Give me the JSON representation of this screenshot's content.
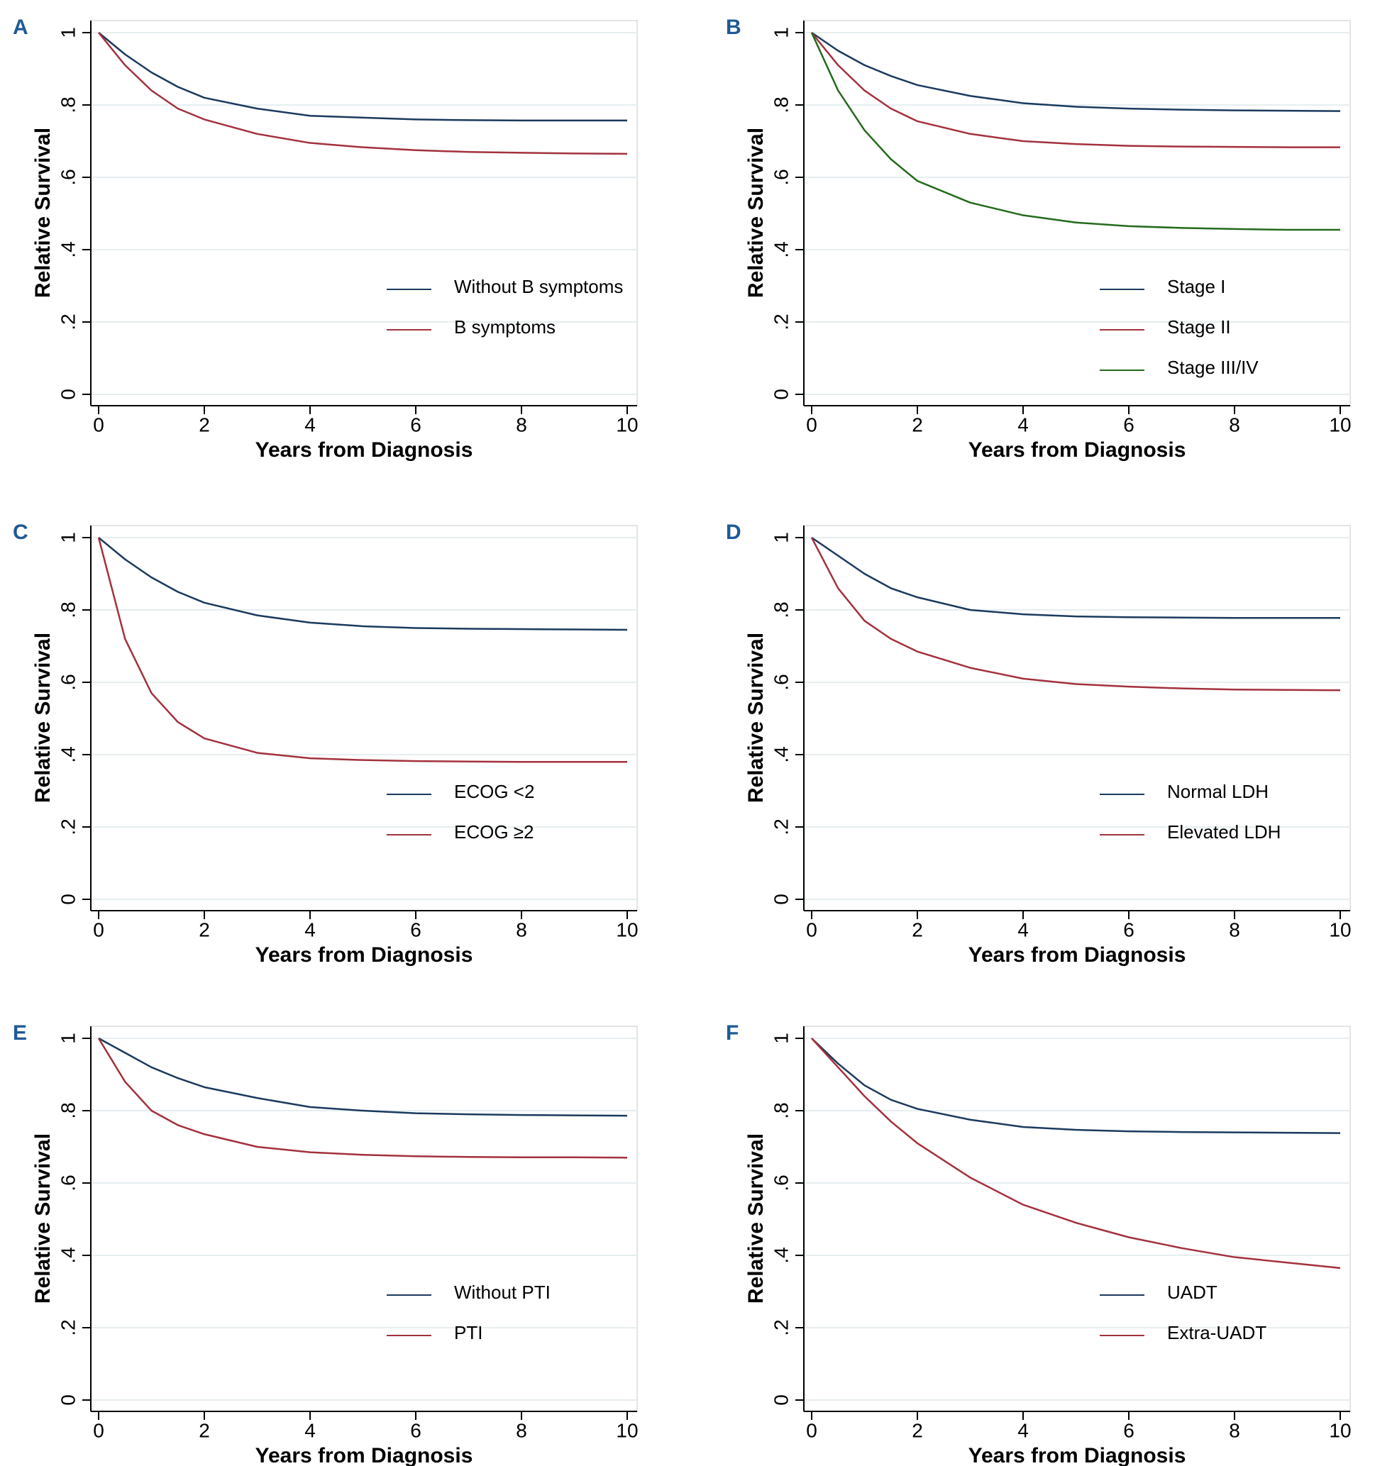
{
  "chart_data": [
    {
      "type": "line",
      "label": "A",
      "x_label": "Years from Diagnosis",
      "y_label": "Relative Survival",
      "x": [
        0,
        0.5,
        1,
        1.5,
        2,
        3,
        4,
        5,
        6,
        7,
        8,
        9,
        10
      ],
      "series": [
        {
          "name": "Without B symptoms",
          "color": "#1b3a5e",
          "values": [
            1,
            0.94,
            0.89,
            0.85,
            0.82,
            0.79,
            0.77,
            0.765,
            0.76,
            0.758,
            0.757,
            0.757,
            0.757
          ]
        },
        {
          "name": "B symptoms",
          "color": "#a3313d",
          "values": [
            1,
            0.91,
            0.84,
            0.79,
            0.76,
            0.72,
            0.695,
            0.683,
            0.675,
            0.67,
            0.668,
            0.666,
            0.665
          ]
        }
      ],
      "xlim": [
        0,
        10
      ],
      "ylim": [
        0,
        1
      ],
      "xticks": [
        0,
        2,
        4,
        6,
        8,
        10
      ],
      "yticks": [
        0,
        {
          "value": 0.2,
          "label": ".2"
        },
        {
          "value": 0.4,
          "label": ".4"
        },
        {
          "value": 0.6,
          "label": ".6"
        },
        {
          "value": 0.8,
          "label": ".8"
        },
        1
      ],
      "grid": true,
      "legend": "lower right"
    },
    {
      "type": "line",
      "label": "B",
      "x_label": "Years from Diagnosis",
      "y_label": "Relative Survival",
      "x": [
        0,
        0.5,
        1,
        1.5,
        2,
        3,
        4,
        5,
        6,
        7,
        8,
        9,
        10
      ],
      "series": [
        {
          "name": "Stage I",
          "color": "#1b3a5e",
          "values": [
            1,
            0.95,
            0.91,
            0.88,
            0.855,
            0.825,
            0.805,
            0.795,
            0.79,
            0.787,
            0.785,
            0.784,
            0.783
          ]
        },
        {
          "name": "Stage II",
          "color": "#a3313d",
          "values": [
            1,
            0.91,
            0.84,
            0.79,
            0.755,
            0.72,
            0.7,
            0.692,
            0.687,
            0.685,
            0.684,
            0.683,
            0.683
          ]
        },
        {
          "name": "Stage III/IV",
          "color": "#246a1c",
          "values": [
            1,
            0.84,
            0.73,
            0.65,
            0.59,
            0.53,
            0.495,
            0.475,
            0.465,
            0.46,
            0.457,
            0.455,
            0.455
          ]
        }
      ],
      "xlim": [
        0,
        10
      ],
      "ylim": [
        0,
        1
      ],
      "xticks": [
        0,
        2,
        4,
        6,
        8,
        10
      ],
      "yticks": [
        0,
        {
          "value": 0.2,
          "label": ".2"
        },
        {
          "value": 0.4,
          "label": ".4"
        },
        {
          "value": 0.6,
          "label": ".6"
        },
        {
          "value": 0.8,
          "label": ".8"
        },
        1
      ],
      "grid": true,
      "legend": "lower right"
    },
    {
      "type": "line",
      "label": "C",
      "x_label": "Years from Diagnosis",
      "y_label": "Relative Survival",
      "x": [
        0,
        0.5,
        1,
        1.5,
        2,
        3,
        4,
        5,
        6,
        7,
        8,
        9,
        10
      ],
      "series": [
        {
          "name": "ECOG <2",
          "color": "#1b3a5e",
          "values": [
            1,
            0.94,
            0.89,
            0.85,
            0.82,
            0.785,
            0.765,
            0.755,
            0.75,
            0.748,
            0.747,
            0.746,
            0.745
          ]
        },
        {
          "name": "ECOG ≥2",
          "color": "#a3313d",
          "values": [
            1,
            0.72,
            0.57,
            0.49,
            0.445,
            0.405,
            0.39,
            0.385,
            0.382,
            0.381,
            0.38,
            0.38,
            0.38
          ]
        }
      ],
      "xlim": [
        0,
        10
      ],
      "ylim": [
        0,
        1
      ],
      "xticks": [
        0,
        2,
        4,
        6,
        8,
        10
      ],
      "yticks": [
        0,
        {
          "value": 0.2,
          "label": ".2"
        },
        {
          "value": 0.4,
          "label": ".4"
        },
        {
          "value": 0.6,
          "label": ".6"
        },
        {
          "value": 0.8,
          "label": ".8"
        },
        1
      ],
      "grid": true,
      "legend": "lower right"
    },
    {
      "type": "line",
      "label": "D",
      "x_label": "Years from Diagnosis",
      "y_label": "Relative Survival",
      "x": [
        0,
        0.5,
        1,
        1.5,
        2,
        3,
        4,
        5,
        6,
        7,
        8,
        9,
        10
      ],
      "series": [
        {
          "name": "Normal LDH",
          "color": "#1b3a5e",
          "values": [
            1,
            0.95,
            0.9,
            0.86,
            0.835,
            0.8,
            0.788,
            0.782,
            0.78,
            0.779,
            0.778,
            0.778,
            0.778
          ]
        },
        {
          "name": "Elevated LDH",
          "color": "#a3313d",
          "values": [
            1,
            0.86,
            0.77,
            0.72,
            0.685,
            0.64,
            0.61,
            0.595,
            0.588,
            0.583,
            0.58,
            0.579,
            0.578
          ]
        }
      ],
      "xlim": [
        0,
        10
      ],
      "ylim": [
        0,
        1
      ],
      "xticks": [
        0,
        2,
        4,
        6,
        8,
        10
      ],
      "yticks": [
        0,
        {
          "value": 0.2,
          "label": ".2"
        },
        {
          "value": 0.4,
          "label": ".4"
        },
        {
          "value": 0.6,
          "label": ".6"
        },
        {
          "value": 0.8,
          "label": ".8"
        },
        1
      ],
      "grid": true,
      "legend": "lower right"
    },
    {
      "type": "line",
      "label": "E",
      "x_label": "Years from Diagnosis",
      "y_label": "Relative Survival",
      "x": [
        0,
        0.5,
        1,
        1.5,
        2,
        3,
        4,
        5,
        6,
        7,
        8,
        9,
        10
      ],
      "series": [
        {
          "name": "Without PTI",
          "color": "#1b3a5e",
          "values": [
            1,
            0.96,
            0.92,
            0.89,
            0.865,
            0.835,
            0.81,
            0.8,
            0.793,
            0.79,
            0.788,
            0.787,
            0.786
          ]
        },
        {
          "name": "PTI",
          "color": "#a3313d",
          "values": [
            1,
            0.88,
            0.8,
            0.76,
            0.735,
            0.7,
            0.685,
            0.678,
            0.674,
            0.672,
            0.671,
            0.671,
            0.67
          ]
        }
      ],
      "xlim": [
        0,
        10
      ],
      "ylim": [
        0,
        1
      ],
      "xticks": [
        0,
        2,
        4,
        6,
        8,
        10
      ],
      "yticks": [
        0,
        {
          "value": 0.2,
          "label": ".2"
        },
        {
          "value": 0.4,
          "label": ".4"
        },
        {
          "value": 0.6,
          "label": ".6"
        },
        {
          "value": 0.8,
          "label": ".8"
        },
        1
      ],
      "grid": true,
      "legend": "lower right"
    },
    {
      "type": "line",
      "label": "F",
      "x_label": "Years from Diagnosis",
      "y_label": "Relative Survival",
      "x": [
        0,
        0.5,
        1,
        1.5,
        2,
        3,
        4,
        5,
        6,
        7,
        8,
        9,
        10
      ],
      "series": [
        {
          "name": "UADT",
          "color": "#1b3a5e",
          "values": [
            1,
            0.93,
            0.87,
            0.83,
            0.805,
            0.775,
            0.755,
            0.747,
            0.743,
            0.741,
            0.74,
            0.739,
            0.738
          ]
        },
        {
          "name": "Extra-UADT",
          "color": "#a3313d",
          "values": [
            1,
            0.92,
            0.84,
            0.77,
            0.71,
            0.615,
            0.54,
            0.49,
            0.45,
            0.42,
            0.395,
            0.38,
            0.365
          ]
        }
      ],
      "xlim": [
        0,
        10
      ],
      "ylim": [
        0,
        1
      ],
      "xticks": [
        0,
        2,
        4,
        6,
        8,
        10
      ],
      "yticks": [
        0,
        {
          "value": 0.2,
          "label": ".2"
        },
        {
          "value": 0.4,
          "label": ".4"
        },
        {
          "value": 0.6,
          "label": ".6"
        },
        {
          "value": 0.8,
          "label": ".8"
        },
        1
      ],
      "grid": true,
      "legend": "lower right"
    }
  ]
}
